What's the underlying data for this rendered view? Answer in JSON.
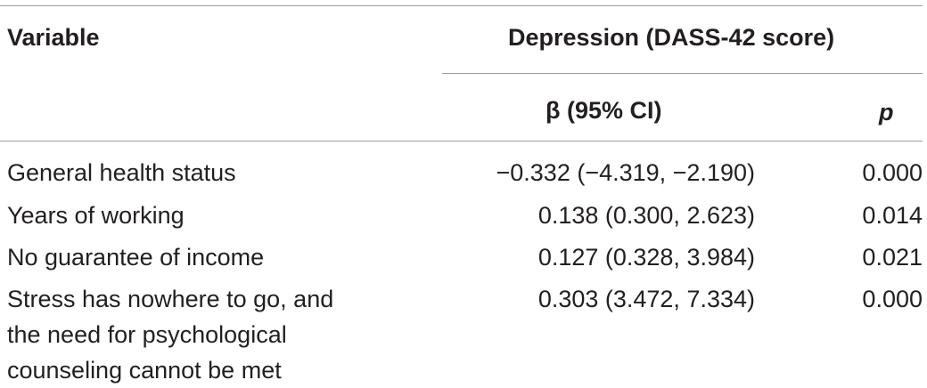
{
  "table": {
    "headers": {
      "variable": "Variable",
      "group": "Depression (DASS-42 score)",
      "beta": "β (95% CI)",
      "p": "p"
    },
    "rows": [
      {
        "variable": "General health status",
        "beta": "−0.332 (−4.319, −2.190)",
        "p": "0.000"
      },
      {
        "variable": "Years of working",
        "beta": "0.138 (0.300, 2.623)",
        "p": "0.014"
      },
      {
        "variable": "No guarantee of income",
        "beta": "0.127 (0.328, 3.984)",
        "p": "0.021"
      },
      {
        "variable": "Stress has nowhere to go, and the need for psychological counseling cannot be met",
        "beta": "0.303 (3.472, 7.334)",
        "p": "0.000"
      }
    ]
  }
}
